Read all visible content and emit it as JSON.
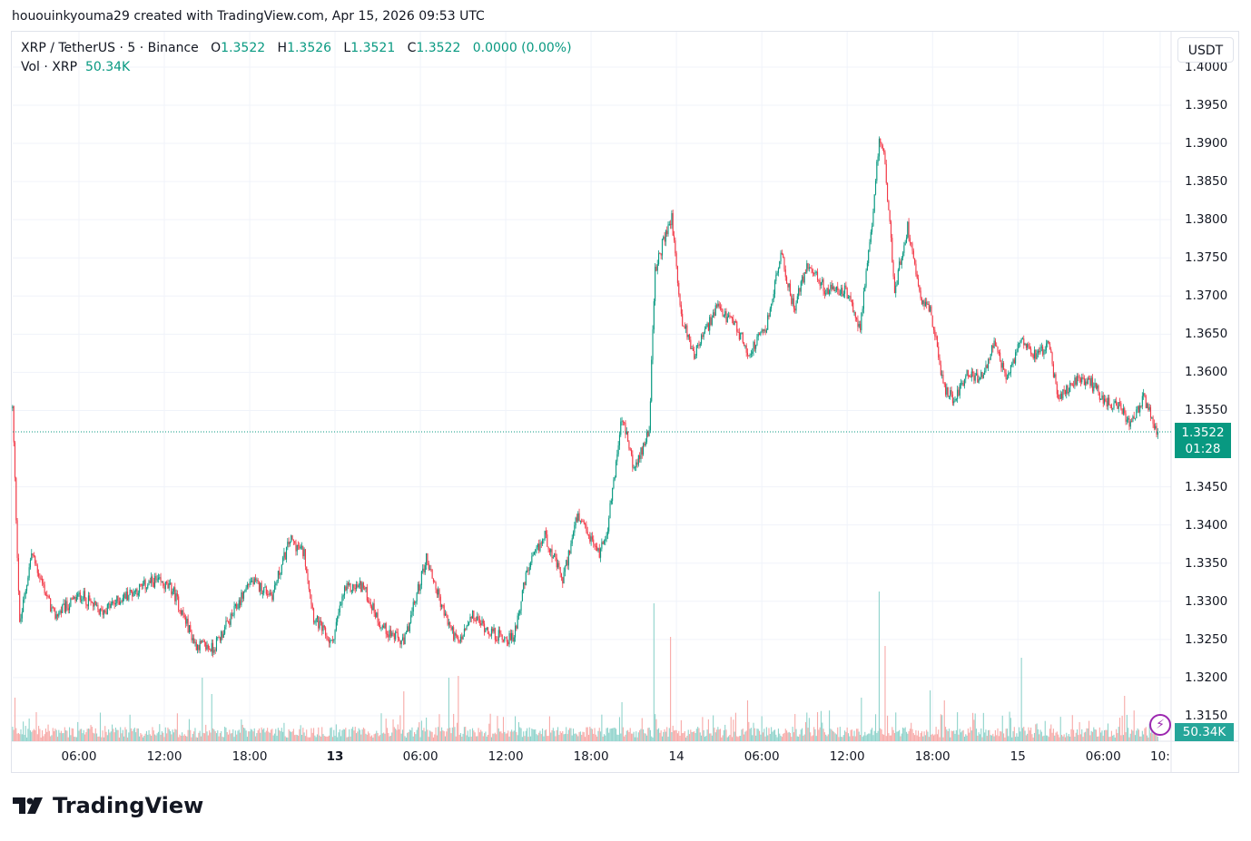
{
  "caption": "hououinkyouma29 created with TradingView.com, Apr 15, 2026 09:53 UTC",
  "legend": {
    "symbol": "XRP / TetherUS · 5 · Binance",
    "o_label": "O",
    "o": "1.3522",
    "h_label": "H",
    "h": "1.3526",
    "l_label": "L",
    "l": "1.3521",
    "c_label": "C",
    "c": "1.3522",
    "change": "0.0000 (0.00%)",
    "vol_label": "Vol · XRP",
    "vol": "50.34K"
  },
  "currency_button": "USDT",
  "price_tag": {
    "price": "1.3522",
    "countdown": "01:28"
  },
  "volume_tag": "50.34K",
  "logo": "TradingView",
  "colors": {
    "up": "#089981",
    "down": "#f23645",
    "vol_up": "#8fd3cb",
    "vol_down": "#f7a9a7",
    "accent": "#089981"
  },
  "icons": {
    "alert": "lightning-bolt-icon",
    "logo": "tradingview-logo-icon"
  },
  "chart_data": {
    "type": "candlestick",
    "interval": "5",
    "price_axis_labels": [
      "1.4000",
      "1.3950",
      "1.3900",
      "1.3850",
      "1.3800",
      "1.3750",
      "1.3700",
      "1.3650",
      "1.3600",
      "1.3550",
      "1.3450",
      "1.3400",
      "1.3350",
      "1.3300",
      "1.3250",
      "1.3200",
      "1.3150"
    ],
    "time_axis_labels": [
      {
        "label": "06:00",
        "t": "2026-04-12T06:00"
      },
      {
        "label": "12:00",
        "t": "2026-04-12T12:00"
      },
      {
        "label": "18:00",
        "t": "2026-04-12T18:00"
      },
      {
        "label": "13",
        "t": "2026-04-13T00:00",
        "bold": true
      },
      {
        "label": "06:00",
        "t": "2026-04-13T06:00"
      },
      {
        "label": "12:00",
        "t": "2026-04-13T12:00"
      },
      {
        "label": "18:00",
        "t": "2026-04-13T18:00"
      },
      {
        "label": "14",
        "t": "2026-04-14T00:00"
      },
      {
        "label": "06:00",
        "t": "2026-04-14T06:00"
      },
      {
        "label": "12:00",
        "t": "2026-04-14T12:00"
      },
      {
        "label": "18:00",
        "t": "2026-04-14T18:00"
      },
      {
        "label": "15",
        "t": "2026-04-15T00:00"
      },
      {
        "label": "06:00",
        "t": "2026-04-15T06:00"
      },
      {
        "label": "10:",
        "t": "2026-04-15T10:00"
      }
    ],
    "last_price": 1.3522,
    "price_path": [
      [
        "2026-04-12T01:20",
        1.3553
      ],
      [
        "2026-04-12T01:50",
        1.3268
      ],
      [
        "2026-04-12T02:40",
        1.3363
      ],
      [
        "2026-04-12T04:15",
        1.328
      ],
      [
        "2026-04-12T06:10",
        1.3309
      ],
      [
        "2026-04-12T07:30",
        1.3285
      ],
      [
        "2026-04-12T09:25",
        1.3309
      ],
      [
        "2026-04-12T11:20",
        1.3327
      ],
      [
        "2026-04-12T12:35",
        1.3315
      ],
      [
        "2026-04-12T14:10",
        1.3244
      ],
      [
        "2026-04-12T15:25",
        1.3238
      ],
      [
        "2026-04-12T16:45",
        1.328
      ],
      [
        "2026-04-12T18:00",
        1.3327
      ],
      [
        "2026-04-12T19:35",
        1.3309
      ],
      [
        "2026-04-12T20:50",
        1.3381
      ],
      [
        "2026-04-12T21:50",
        1.3363
      ],
      [
        "2026-04-12T22:30",
        1.328
      ],
      [
        "2026-04-12T23:45",
        1.3244
      ],
      [
        "2026-04-13T00:40",
        1.3315
      ],
      [
        "2026-04-13T01:55",
        1.3321
      ],
      [
        "2026-04-13T03:15",
        1.3268
      ],
      [
        "2026-04-13T04:50",
        1.3244
      ],
      [
        "2026-04-13T06:25",
        1.3357
      ],
      [
        "2026-04-13T07:45",
        1.328
      ],
      [
        "2026-04-13T08:40",
        1.3244
      ],
      [
        "2026-04-13T09:40",
        1.328
      ],
      [
        "2026-04-13T11:15",
        1.3256
      ],
      [
        "2026-04-13T12:30",
        1.325
      ],
      [
        "2026-04-13T13:30",
        1.3339
      ],
      [
        "2026-04-13T14:45",
        1.3387
      ],
      [
        "2026-04-13T16:00",
        1.3327
      ],
      [
        "2026-04-13T17:00",
        1.341
      ],
      [
        "2026-04-13T18:35",
        1.3363
      ],
      [
        "2026-04-13T19:10",
        1.3398
      ],
      [
        "2026-04-13T20:10",
        1.3541
      ],
      [
        "2026-04-13T21:05",
        1.347
      ],
      [
        "2026-04-13T22:05",
        1.3529
      ],
      [
        "2026-04-13T22:30",
        1.3731
      ],
      [
        "2026-04-13T23:00",
        1.3767
      ],
      [
        "2026-04-13T23:40",
        1.3803
      ],
      [
        "2026-04-14T00:20",
        1.3672
      ],
      [
        "2026-04-14T01:15",
        1.3624
      ],
      [
        "2026-04-14T02:50",
        1.3684
      ],
      [
        "2026-04-14T04:10",
        1.366
      ],
      [
        "2026-04-14T05:05",
        1.3624
      ],
      [
        "2026-04-14T06:20",
        1.366
      ],
      [
        "2026-04-14T07:20",
        1.3755
      ],
      [
        "2026-04-14T08:15",
        1.3684
      ],
      [
        "2026-04-14T09:15",
        1.3743
      ],
      [
        "2026-04-14T10:30",
        1.3707
      ],
      [
        "2026-04-14T11:50",
        1.3707
      ],
      [
        "2026-04-14T12:55",
        1.366
      ],
      [
        "2026-04-14T13:45",
        1.3791
      ],
      [
        "2026-04-14T14:15",
        1.391
      ],
      [
        "2026-04-14T14:40",
        1.3874
      ],
      [
        "2026-04-14T15:20",
        1.3707
      ],
      [
        "2026-04-14T16:15",
        1.3791
      ],
      [
        "2026-04-14T17:15",
        1.3696
      ],
      [
        "2026-04-14T17:50",
        1.3684
      ],
      [
        "2026-04-14T18:50",
        1.3577
      ],
      [
        "2026-04-14T19:30",
        1.3565
      ],
      [
        "2026-04-14T20:25",
        1.36
      ],
      [
        "2026-04-14T21:20",
        1.3589
      ],
      [
        "2026-04-14T22:20",
        1.3636
      ],
      [
        "2026-04-14T23:15",
        1.3589
      ],
      [
        "2026-04-15T00:15",
        1.3648
      ],
      [
        "2026-04-15T01:10",
        1.3624
      ],
      [
        "2026-04-15T02:10",
        1.3636
      ],
      [
        "2026-04-15T02:50",
        1.3565
      ],
      [
        "2026-04-15T04:05",
        1.3589
      ],
      [
        "2026-04-15T05:00",
        1.3589
      ],
      [
        "2026-04-15T06:00",
        1.3565
      ],
      [
        "2026-04-15T07:15",
        1.3553
      ],
      [
        "2026-04-15T07:55",
        1.3529
      ],
      [
        "2026-04-15T08:50",
        1.3565
      ],
      [
        "2026-04-15T09:50",
        1.3522
      ]
    ],
    "volume_spikes_k": [
      [
        "2026-04-12T01:30",
        480
      ],
      [
        "2026-04-12T14:40",
        700
      ],
      [
        "2026-04-12T15:20",
        520
      ],
      [
        "2026-04-13T04:50",
        550
      ],
      [
        "2026-04-13T08:00",
        700
      ],
      [
        "2026-04-13T08:40",
        720
      ],
      [
        "2026-04-13T20:10",
        430
      ],
      [
        "2026-04-13T22:25",
        1520
      ],
      [
        "2026-04-13T23:35",
        1150
      ],
      [
        "2026-04-14T05:00",
        450
      ],
      [
        "2026-04-14T13:00",
        480
      ],
      [
        "2026-04-14T14:15",
        1650
      ],
      [
        "2026-04-14T14:40",
        1050
      ],
      [
        "2026-04-14T17:50",
        560
      ],
      [
        "2026-04-14T18:50",
        450
      ],
      [
        "2026-04-15T00:15",
        920
      ],
      [
        "2026-04-15T07:30",
        500
      ]
    ],
    "last_volume": "50.34K"
  }
}
